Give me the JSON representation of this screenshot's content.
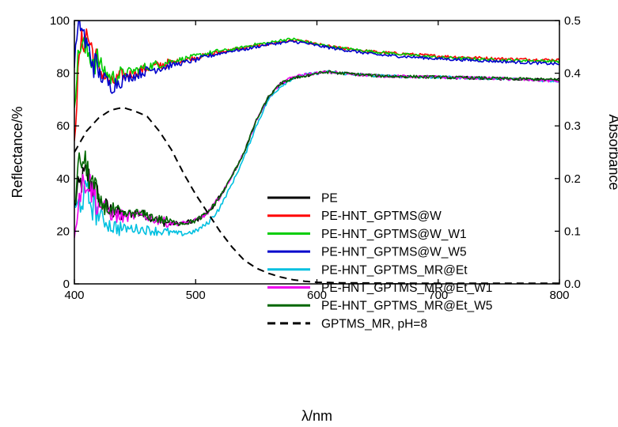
{
  "chart_data": {
    "type": "line",
    "xlabel": "λ/nm",
    "ylabel": "Reflectance/%",
    "y2label": "Absorbance",
    "xlim": [
      400,
      800
    ],
    "ylim": [
      0,
      100
    ],
    "y2lim": [
      0,
      0.5
    ],
    "xticks": [
      "400",
      "500",
      "600",
      "700",
      "800"
    ],
    "yticks": [
      "0",
      "20",
      "40",
      "60",
      "80",
      "100"
    ],
    "y2ticks": [
      "0.0",
      "0.1",
      "0.2",
      "0.3",
      "0.4",
      "0.5"
    ],
    "grid": false,
    "legend_position": "center-right",
    "series": [
      {
        "name": "PE",
        "color": "#000000",
        "axis": "left",
        "style": "solid",
        "group": "low",
        "x": [
          400,
          405,
          410,
          420,
          430,
          440,
          450,
          460,
          470,
          480,
          490,
          500,
          510,
          520,
          530,
          540,
          550,
          560,
          570,
          580,
          590,
          600,
          610,
          620,
          650,
          700,
          750,
          800
        ],
        "y": [
          30,
          38,
          42,
          32,
          28,
          26,
          27,
          26,
          24,
          23,
          23,
          24,
          27,
          33,
          41,
          50,
          62,
          71,
          76,
          78,
          79,
          80,
          80.5,
          80,
          79,
          78.5,
          78,
          77.5
        ]
      },
      {
        "name": "PE-HNT_GPTMS@W",
        "color": "#ff0000",
        "axis": "left",
        "style": "solid",
        "group": "high",
        "x": [
          400,
          405,
          410,
          420,
          430,
          440,
          450,
          460,
          470,
          480,
          490,
          500,
          510,
          520,
          530,
          540,
          550,
          560,
          570,
          580,
          590,
          600,
          620,
          650,
          700,
          750,
          800
        ],
        "y": [
          58,
          90,
          95,
          82,
          76,
          79,
          80,
          82,
          83,
          84,
          85,
          86,
          87,
          88,
          89,
          89.5,
          90.5,
          91,
          92,
          92.5,
          92,
          91,
          89.5,
          88,
          86.5,
          85.5,
          85
        ]
      },
      {
        "name": "PE-HNT_GPTMS@W_W1",
        "color": "#00cc00",
        "axis": "left",
        "style": "solid",
        "group": "high",
        "x": [
          400,
          405,
          410,
          420,
          430,
          440,
          450,
          460,
          470,
          480,
          490,
          500,
          510,
          520,
          530,
          540,
          550,
          560,
          570,
          580,
          590,
          600,
          620,
          650,
          700,
          750,
          800
        ],
        "y": [
          72,
          92,
          88,
          84,
          78,
          80,
          81,
          82.5,
          83.5,
          84.5,
          85.5,
          86.5,
          87.5,
          88.5,
          89,
          90,
          91,
          91.5,
          92.5,
          93,
          92,
          91,
          89.5,
          88,
          86,
          85,
          84.5
        ]
      },
      {
        "name": "PE-HNT_GPTMS@W_W5",
        "color": "#0000cc",
        "axis": "left",
        "style": "solid",
        "group": "high",
        "x": [
          400,
          405,
          410,
          420,
          430,
          440,
          450,
          460,
          470,
          480,
          490,
          500,
          510,
          520,
          530,
          540,
          550,
          560,
          570,
          580,
          590,
          600,
          620,
          650,
          700,
          750,
          800
        ],
        "y": [
          85,
          100,
          90,
          80,
          75,
          78,
          79,
          81,
          82,
          83,
          84,
          85,
          86.5,
          87.5,
          88.5,
          89,
          90,
          91,
          91.5,
          92,
          91.5,
          90.5,
          89,
          87,
          85.5,
          84.5,
          83.5
        ]
      },
      {
        "name": "PE-HNT_GPTMS_MR@Et",
        "color": "#00c0e0",
        "axis": "left",
        "style": "solid",
        "group": "low",
        "x": [
          400,
          405,
          410,
          420,
          430,
          440,
          450,
          460,
          470,
          480,
          490,
          500,
          510,
          520,
          530,
          540,
          550,
          560,
          570,
          580,
          590,
          600,
          610,
          620,
          650,
          700,
          750,
          800
        ],
        "y": [
          26,
          32,
          34,
          26,
          22,
          21,
          21,
          20.5,
          20,
          19.5,
          19,
          20,
          23,
          29,
          38,
          48,
          60,
          70,
          75,
          78,
          79.5,
          80,
          80.5,
          80,
          79,
          78.5,
          78,
          77
        ]
      },
      {
        "name": "PE-HNT_GPTMS_MR@Et_W1",
        "color": "#ee00ee",
        "axis": "left",
        "style": "solid",
        "group": "low",
        "x": [
          400,
          405,
          410,
          420,
          430,
          440,
          450,
          460,
          470,
          480,
          490,
          500,
          510,
          520,
          530,
          540,
          550,
          560,
          570,
          580,
          590,
          600,
          610,
          620,
          650,
          700,
          750,
          800
        ],
        "y": [
          22,
          36,
          40,
          30,
          27,
          25,
          26,
          25.5,
          24,
          23,
          23,
          24,
          27,
          33,
          41,
          50,
          62,
          71,
          76,
          78.5,
          79.5,
          80,
          80.5,
          80,
          79,
          78.5,
          78,
          77
        ]
      },
      {
        "name": "PE-HNT_GPTMS_MR@Et_W5",
        "color": "#006600",
        "axis": "left",
        "style": "solid",
        "group": "low",
        "x": [
          400,
          405,
          410,
          420,
          430,
          440,
          450,
          460,
          470,
          480,
          490,
          500,
          510,
          520,
          530,
          540,
          550,
          560,
          570,
          580,
          590,
          600,
          610,
          620,
          650,
          700,
          750,
          800
        ],
        "y": [
          32,
          48,
          44,
          31,
          28,
          26,
          27,
          26,
          24.5,
          23.5,
          23,
          24,
          27,
          33,
          41,
          50,
          62,
          71,
          76,
          78,
          79,
          80,
          80.5,
          80,
          79,
          78.5,
          78,
          77.5
        ]
      },
      {
        "name": "GPTMS_MR, pH=8",
        "color": "#000000",
        "axis": "right",
        "style": "dashed",
        "group": "smooth",
        "x": [
          400,
          410,
          420,
          430,
          440,
          450,
          460,
          470,
          480,
          490,
          500,
          510,
          520,
          530,
          540,
          550,
          560,
          570,
          580,
          590,
          600,
          620,
          650,
          700,
          750,
          800
        ],
        "y": [
          0.25,
          0.29,
          0.315,
          0.33,
          0.335,
          0.328,
          0.318,
          0.29,
          0.255,
          0.21,
          0.17,
          0.135,
          0.1,
          0.07,
          0.045,
          0.03,
          0.02,
          0.013,
          0.008,
          0.005,
          0.003,
          0.002,
          0.0015,
          0.001,
          0.001,
          0.001
        ]
      }
    ]
  }
}
